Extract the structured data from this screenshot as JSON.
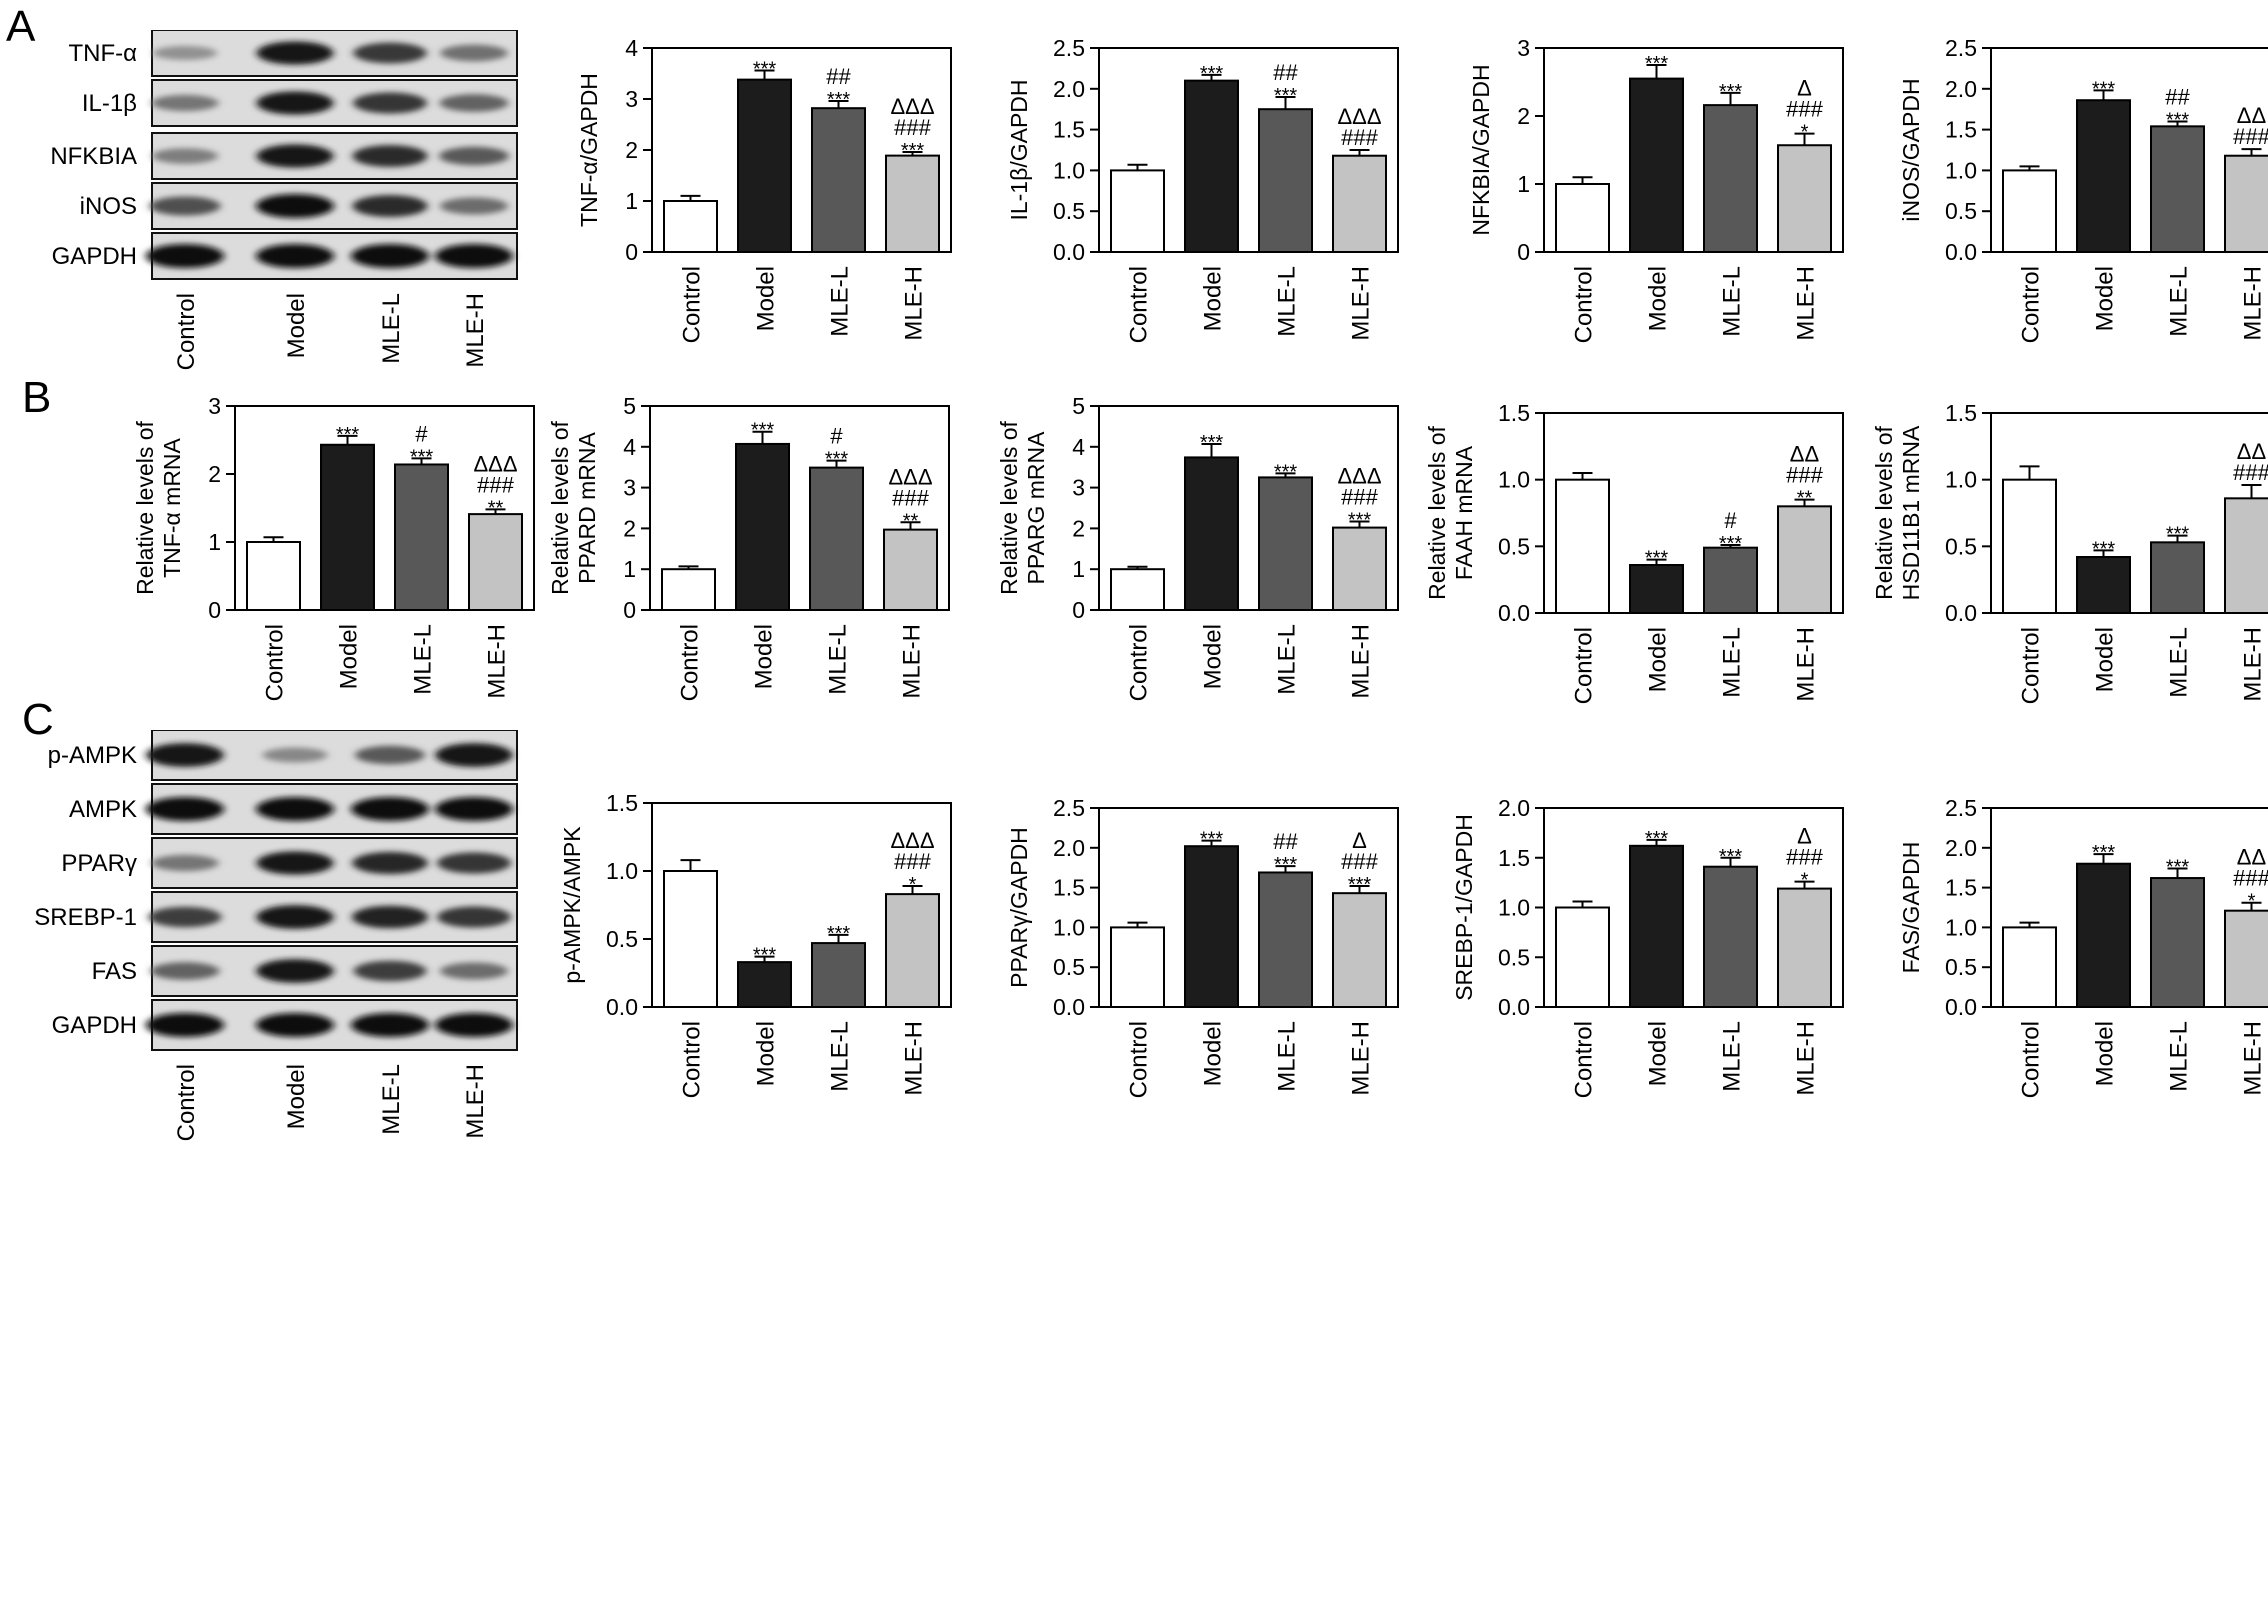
{
  "panels": [
    {
      "letter": "A"
    },
    {
      "letter": "B"
    },
    {
      "letter": "C"
    }
  ],
  "groups": [
    "Control",
    "Model",
    "MLE-L",
    "MLE-H"
  ],
  "bar_colors": [
    "#ffffff",
    "#1c1c1c",
    "#585858",
    "#c3c3c3"
  ],
  "blots": [
    {
      "panel": "A",
      "rows": [
        {
          "label": "TNF-α",
          "intensity": [
            0.3,
            0.95,
            0.78,
            0.48
          ]
        },
        {
          "label": "IL-1β",
          "intensity": [
            0.45,
            0.95,
            0.8,
            0.55
          ]
        },
        {
          "label": "NFKBIA",
          "intensity": [
            0.4,
            0.95,
            0.85,
            0.6
          ]
        },
        {
          "label": "iNOS",
          "intensity": [
            0.65,
            1.0,
            0.85,
            0.5
          ]
        },
        {
          "label": "GAPDH",
          "intensity": [
            1.0,
            1.0,
            1.0,
            1.0
          ]
        }
      ]
    },
    {
      "panel": "C",
      "rows": [
        {
          "label": "p-AMPK",
          "intensity": [
            0.98,
            0.35,
            0.6,
            0.98
          ]
        },
        {
          "label": "AMPK",
          "intensity": [
            1.0,
            1.0,
            1.0,
            1.0
          ]
        },
        {
          "label": "PPARγ",
          "intensity": [
            0.45,
            0.95,
            0.88,
            0.8
          ]
        },
        {
          "label": "SREBP-1",
          "intensity": [
            0.75,
            0.98,
            0.9,
            0.8
          ]
        },
        {
          "label": "FAS",
          "intensity": [
            0.55,
            0.98,
            0.75,
            0.5
          ]
        },
        {
          "label": "GAPDH",
          "intensity": [
            1.0,
            1.0,
            1.0,
            1.0
          ]
        }
      ]
    }
  ],
  "chart_data": [
    {
      "type": "bar",
      "panel": "A",
      "categories": [
        "Control",
        "Model",
        "MLE-L",
        "MLE-H"
      ],
      "ylabel": "TNF-α/GAPDH",
      "ylim": [
        0,
        4
      ],
      "yticks": [
        "0",
        "1",
        "2",
        "3",
        "4"
      ],
      "values": [
        1.0,
        3.38,
        2.82,
        1.89
      ],
      "errors": [
        0.1,
        0.18,
        0.14,
        0.07
      ],
      "annotations": [
        [],
        [
          "***"
        ],
        [
          "***",
          "##"
        ],
        [
          "***",
          "###",
          "ΔΔΔ"
        ]
      ]
    },
    {
      "type": "bar",
      "panel": "A",
      "categories": [
        "Control",
        "Model",
        "MLE-L",
        "MLE-H"
      ],
      "ylabel": "IL-1β/GAPDH",
      "ylim": [
        0,
        2.5
      ],
      "yticks": [
        "0.0",
        "0.5",
        "1.0",
        "1.5",
        "2.0",
        "2.5"
      ],
      "values": [
        1.0,
        2.1,
        1.75,
        1.18
      ],
      "errors": [
        0.07,
        0.07,
        0.15,
        0.07
      ],
      "annotations": [
        [],
        [
          "***"
        ],
        [
          "***",
          "##"
        ],
        [
          "###",
          "ΔΔΔ"
        ]
      ]
    },
    {
      "type": "bar",
      "panel": "A",
      "categories": [
        "Control",
        "Model",
        "MLE-L",
        "MLE-H"
      ],
      "ylabel": "NFKBIA/GAPDH",
      "ylim": [
        0,
        3
      ],
      "yticks": [
        "0",
        "1",
        "2",
        "3"
      ],
      "values": [
        1.0,
        2.55,
        2.16,
        1.57
      ],
      "errors": [
        0.1,
        0.2,
        0.18,
        0.17
      ],
      "annotations": [
        [],
        [
          "***"
        ],
        [
          "***"
        ],
        [
          "*",
          "###",
          "Δ"
        ]
      ]
    },
    {
      "type": "bar",
      "panel": "A",
      "categories": [
        "Control",
        "Model",
        "MLE-L",
        "MLE-H"
      ],
      "ylabel": "iNOS/GAPDH",
      "ylim": [
        0,
        2.5
      ],
      "yticks": [
        "0.0",
        "0.5",
        "1.0",
        "1.5",
        "2.0",
        "2.5"
      ],
      "values": [
        1.0,
        1.86,
        1.54,
        1.18
      ],
      "errors": [
        0.05,
        0.12,
        0.06,
        0.08
      ],
      "annotations": [
        [],
        [
          "***"
        ],
        [
          "***",
          "##"
        ],
        [
          "###",
          "ΔΔ"
        ]
      ]
    },
    {
      "type": "bar",
      "panel": "B",
      "categories": [
        "Control",
        "Model",
        "MLE-L",
        "MLE-H"
      ],
      "ylabel": "Relative levels of TNF-α mRNA",
      "ylim": [
        0,
        3
      ],
      "yticks": [
        "0",
        "1",
        "2",
        "3"
      ],
      "values": [
        1.0,
        2.43,
        2.14,
        1.41
      ],
      "errors": [
        0.07,
        0.13,
        0.09,
        0.07
      ],
      "annotations": [
        [],
        [
          "***"
        ],
        [
          "***",
          "#"
        ],
        [
          "**",
          "###",
          "ΔΔΔ"
        ]
      ]
    },
    {
      "type": "bar",
      "panel": "B",
      "categories": [
        "Control",
        "Model",
        "MLE-L",
        "MLE-H"
      ],
      "ylabel": "Relative levels of PPARD mRNA",
      "ylim": [
        0,
        5
      ],
      "yticks": [
        "0",
        "1",
        "2",
        "3",
        "4",
        "5"
      ],
      "values": [
        1.0,
        4.07,
        3.49,
        1.97
      ],
      "errors": [
        0.07,
        0.3,
        0.17,
        0.18
      ],
      "annotations": [
        [],
        [
          "***"
        ],
        [
          "***",
          "#"
        ],
        [
          "**",
          "###",
          "ΔΔΔ"
        ]
      ]
    },
    {
      "type": "bar",
      "panel": "B",
      "categories": [
        "Control",
        "Model",
        "MLE-L",
        "MLE-H"
      ],
      "ylabel": "Relative levels of PPARG mRNA",
      "ylim": [
        0,
        5
      ],
      "yticks": [
        "0",
        "1",
        "2",
        "3",
        "4",
        "5"
      ],
      "values": [
        1.0,
        3.74,
        3.25,
        2.02
      ],
      "errors": [
        0.06,
        0.33,
        0.1,
        0.15
      ],
      "annotations": [
        [],
        [
          "***"
        ],
        [
          "***"
        ],
        [
          "***",
          "###",
          "ΔΔΔ"
        ]
      ]
    },
    {
      "type": "bar",
      "panel": "B",
      "categories": [
        "Control",
        "Model",
        "MLE-L",
        "MLE-H"
      ],
      "ylabel": "Relative levels of FAAH mRNA",
      "ylim": [
        0,
        1.5
      ],
      "yticks": [
        "0.0",
        "0.5",
        "1.0",
        "1.5"
      ],
      "values": [
        1.0,
        0.36,
        0.49,
        0.8
      ],
      "errors": [
        0.05,
        0.04,
        0.02,
        0.05
      ],
      "annotations": [
        [],
        [
          "***"
        ],
        [
          "***",
          "#"
        ],
        [
          "**",
          "###",
          "ΔΔ"
        ]
      ]
    },
    {
      "type": "bar",
      "panel": "B",
      "categories": [
        "Control",
        "Model",
        "MLE-L",
        "MLE-H"
      ],
      "ylabel": "Relative levels of HSD11B1 mRNA",
      "ylim": [
        0,
        1.5
      ],
      "yticks": [
        "0.0",
        "0.5",
        "1.0",
        "1.5"
      ],
      "values": [
        1.0,
        0.42,
        0.53,
        0.86
      ],
      "errors": [
        0.1,
        0.05,
        0.05,
        0.1
      ],
      "annotations": [
        [],
        [
          "***"
        ],
        [
          "***"
        ],
        [
          "###",
          "ΔΔ"
        ]
      ]
    },
    {
      "type": "bar",
      "panel": "C",
      "categories": [
        "Control",
        "Model",
        "MLE-L",
        "MLE-H"
      ],
      "ylabel": "p-AMPK/AMPK",
      "ylim": [
        0,
        1.5
      ],
      "yticks": [
        "0.0",
        "0.5",
        "1.0",
        "1.5"
      ],
      "values": [
        1.0,
        0.33,
        0.47,
        0.83
      ],
      "errors": [
        0.08,
        0.04,
        0.06,
        0.06
      ],
      "annotations": [
        [],
        [
          "***"
        ],
        [
          "***"
        ],
        [
          "*",
          "###",
          "ΔΔΔ"
        ]
      ]
    },
    {
      "type": "bar",
      "panel": "C",
      "categories": [
        "Control",
        "Model",
        "MLE-L",
        "MLE-H"
      ],
      "ylabel": "PPARγ/GAPDH",
      "ylim": [
        0,
        2.5
      ],
      "yticks": [
        "0.0",
        "0.5",
        "1.0",
        "1.5",
        "2.0",
        "2.5"
      ],
      "values": [
        1.0,
        2.02,
        1.69,
        1.43
      ],
      "errors": [
        0.06,
        0.07,
        0.08,
        0.09
      ],
      "annotations": [
        [],
        [
          "***"
        ],
        [
          "***",
          "##"
        ],
        [
          "***",
          "###",
          "Δ"
        ]
      ]
    },
    {
      "type": "bar",
      "panel": "C",
      "categories": [
        "Control",
        "Model",
        "MLE-L",
        "MLE-H"
      ],
      "ylabel": "SREBP-1/GAPDH",
      "ylim": [
        0,
        2.0
      ],
      "yticks": [
        "0.0",
        "0.5",
        "1.0",
        "1.5",
        "2.0"
      ],
      "values": [
        1.0,
        1.62,
        1.41,
        1.19
      ],
      "errors": [
        0.06,
        0.06,
        0.09,
        0.07
      ],
      "annotations": [
        [],
        [
          "***"
        ],
        [
          "***"
        ],
        [
          "*",
          "###",
          "Δ"
        ]
      ]
    },
    {
      "type": "bar",
      "panel": "C",
      "categories": [
        "Control",
        "Model",
        "MLE-L",
        "MLE-H"
      ],
      "ylabel": "FAS/GAPDH",
      "ylim": [
        0,
        2.5
      ],
      "yticks": [
        "0.0",
        "0.5",
        "1.0",
        "1.5",
        "2.0",
        "2.5"
      ],
      "values": [
        1.0,
        1.8,
        1.62,
        1.21
      ],
      "errors": [
        0.06,
        0.12,
        0.12,
        0.1
      ],
      "annotations": [
        [],
        [
          "***"
        ],
        [
          "***"
        ],
        [
          "*",
          "###",
          "ΔΔ"
        ]
      ]
    }
  ]
}
